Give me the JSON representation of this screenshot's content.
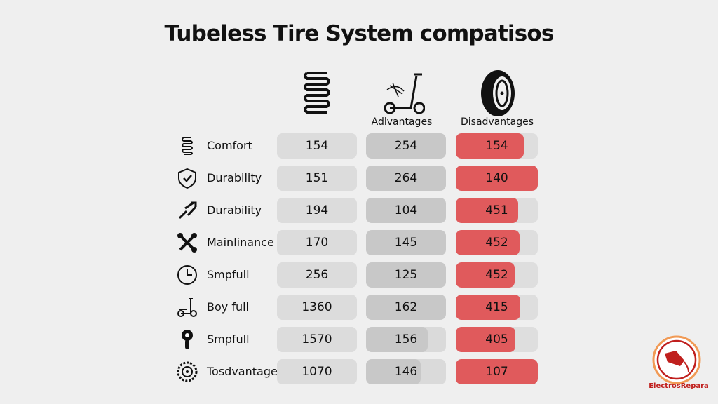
{
  "title": "Tubeless Tire System compatisos",
  "columns": [
    {
      "label": "",
      "icon": "spring-icon"
    },
    {
      "label": "Adlvantages",
      "icon": "scooter-icon"
    },
    {
      "label": "Disadvantages",
      "icon": "tire-icon"
    }
  ],
  "colors": {
    "disadvantage": "#e05a5c",
    "gray": "#dcdcdc",
    "advantage": "#c8c8c8"
  },
  "chart_data": {
    "type": "table",
    "title": "Tubeless Tire System compatisos",
    "columns": [
      "",
      "Adlvantages",
      "Disadvantages"
    ],
    "rows": [
      {
        "label": "Comfort",
        "icon": "spring-icon",
        "values": [
          "154",
          "254",
          "154"
        ],
        "fills": [
          1,
          1,
          0.83
        ]
      },
      {
        "label": "Durability",
        "icon": "shield-check-icon",
        "values": [
          "151",
          "264",
          "140"
        ],
        "fills": [
          1,
          1,
          1
        ]
      },
      {
        "label": "Durability",
        "icon": "broken-tools-icon",
        "values": [
          "194",
          "104",
          "451"
        ],
        "fills": [
          1,
          1,
          0.76
        ]
      },
      {
        "label": "Mainlinance",
        "icon": "wrench-icon",
        "values": [
          "170",
          "145",
          "452"
        ],
        "fills": [
          1,
          1,
          0.78
        ]
      },
      {
        "label": "Smpfull",
        "icon": "clock-icon",
        "values": [
          "256",
          "125",
          "452"
        ],
        "fills": [
          1,
          1,
          0.72
        ]
      },
      {
        "label": "Boy full",
        "icon": "scooter-icon",
        "values": [
          "1360",
          "162",
          "415"
        ],
        "fills": [
          1,
          1,
          0.79
        ]
      },
      {
        "label": "Smpfull",
        "icon": "valve-icon",
        "values": [
          "1570",
          "156",
          "405"
        ],
        "fills": [
          1,
          0.77,
          0.73
        ]
      },
      {
        "label": "Tosdvantages",
        "icon": "tread-icon",
        "values": [
          "1070",
          "146",
          "107"
        ],
        "fills": [
          1,
          0.68,
          1
        ]
      }
    ]
  },
  "logo": {
    "text": "ElectrosRepara",
    "icon": "charger-plug-icon"
  }
}
